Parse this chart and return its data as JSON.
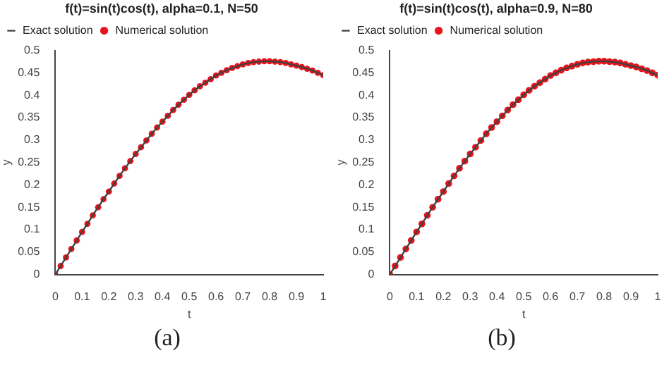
{
  "chart_data": [
    {
      "type": "line",
      "title": "f(t)=sin(t)cos(t), alpha=0.1, N=50",
      "xlabel": "t",
      "ylabel": "y",
      "annotations": [
        "(a)"
      ],
      "legend": "top left",
      "grid": false,
      "xlim": [
        0,
        1
      ],
      "xticks": [
        0,
        0.1,
        0.2,
        0.3,
        0.4,
        0.5,
        0.6,
        0.7,
        0.8,
        0.9,
        1
      ],
      "ylim": [
        0,
        0.5
      ],
      "yticks": [
        0,
        0.05,
        0.1,
        0.15,
        0.2,
        0.25,
        0.3,
        0.35,
        0.4,
        0.45,
        0.5
      ],
      "x": [
        0,
        0.02,
        0.04,
        0.06,
        0.08,
        0.1,
        0.12,
        0.14,
        0.16,
        0.18,
        0.2,
        0.22,
        0.24,
        0.26,
        0.28,
        0.3,
        0.32,
        0.34,
        0.36,
        0.38,
        0.4,
        0.42,
        0.44,
        0.46,
        0.48,
        0.5,
        0.52,
        0.54,
        0.56,
        0.58,
        0.6,
        0.62,
        0.64,
        0.66,
        0.68,
        0.7,
        0.72,
        0.74,
        0.76,
        0.78,
        0.8,
        0.82,
        0.84,
        0.86,
        0.88,
        0.9,
        0.92,
        0.94,
        0.96,
        0.98,
        1
      ],
      "series": [
        {
          "name": "Exact solution",
          "type": "line",
          "color": "#404040",
          "marker": "none",
          "line_style": "solid",
          "values": [
            0,
            0.019,
            0.038,
            0.057,
            0.076,
            0.095,
            0.113,
            0.132,
            0.15,
            0.168,
            0.185,
            0.203,
            0.22,
            0.237,
            0.253,
            0.269,
            0.284,
            0.299,
            0.314,
            0.328,
            0.341,
            0.354,
            0.367,
            0.379,
            0.39,
            0.401,
            0.411,
            0.42,
            0.428,
            0.436,
            0.444,
            0.45,
            0.456,
            0.461,
            0.465,
            0.469,
            0.472,
            0.474,
            0.475,
            0.476,
            0.476,
            0.475,
            0.474,
            0.472,
            0.469,
            0.466,
            0.463,
            0.459,
            0.455,
            0.45,
            0.445
          ]
        },
        {
          "name": "Numerical solution",
          "type": "scatter",
          "color": "#e8141c",
          "marker": "circle",
          "values": [
            0,
            0.019,
            0.038,
            0.057,
            0.076,
            0.095,
            0.113,
            0.132,
            0.15,
            0.168,
            0.185,
            0.203,
            0.22,
            0.237,
            0.253,
            0.269,
            0.284,
            0.299,
            0.314,
            0.328,
            0.341,
            0.354,
            0.367,
            0.379,
            0.39,
            0.401,
            0.411,
            0.42,
            0.428,
            0.436,
            0.444,
            0.45,
            0.456,
            0.461,
            0.465,
            0.469,
            0.472,
            0.474,
            0.475,
            0.476,
            0.476,
            0.475,
            0.474,
            0.472,
            0.469,
            0.466,
            0.463,
            0.459,
            0.455,
            0.45,
            0.445
          ]
        }
      ]
    },
    {
      "type": "line",
      "title": "f(t)=sin(t)cos(t), alpha=0.9, N=80",
      "xlabel": "t",
      "ylabel": "y",
      "annotations": [
        "(b)"
      ],
      "legend": "top left",
      "grid": false,
      "xlim": [
        0,
        1
      ],
      "xticks": [
        0,
        0.1,
        0.2,
        0.3,
        0.4,
        0.5,
        0.6,
        0.7,
        0.8,
        0.9,
        1
      ],
      "ylim": [
        0,
        0.5
      ],
      "yticks": [
        0,
        0.05,
        0.1,
        0.15,
        0.2,
        0.25,
        0.3,
        0.35,
        0.4,
        0.45,
        0.5
      ],
      "x": [
        0,
        0.02,
        0.04,
        0.06,
        0.08,
        0.1,
        0.12,
        0.14,
        0.16,
        0.18,
        0.2,
        0.22,
        0.24,
        0.26,
        0.28,
        0.3,
        0.32,
        0.34,
        0.36,
        0.38,
        0.4,
        0.42,
        0.44,
        0.46,
        0.48,
        0.5,
        0.52,
        0.54,
        0.56,
        0.58,
        0.6,
        0.62,
        0.64,
        0.66,
        0.68,
        0.7,
        0.72,
        0.74,
        0.76,
        0.78,
        0.8,
        0.82,
        0.84,
        0.86,
        0.88,
        0.9,
        0.92,
        0.94,
        0.96,
        0.98,
        1
      ],
      "series": [
        {
          "name": "Exact solution",
          "type": "line",
          "color": "#404040",
          "marker": "none",
          "line_style": "solid",
          "values": [
            0,
            0.019,
            0.038,
            0.057,
            0.076,
            0.095,
            0.113,
            0.132,
            0.15,
            0.168,
            0.185,
            0.203,
            0.22,
            0.237,
            0.253,
            0.269,
            0.284,
            0.299,
            0.314,
            0.328,
            0.341,
            0.354,
            0.367,
            0.379,
            0.39,
            0.401,
            0.411,
            0.42,
            0.428,
            0.436,
            0.444,
            0.45,
            0.456,
            0.461,
            0.465,
            0.469,
            0.472,
            0.474,
            0.475,
            0.476,
            0.476,
            0.475,
            0.474,
            0.472,
            0.469,
            0.466,
            0.463,
            0.459,
            0.455,
            0.45,
            0.445
          ]
        },
        {
          "name": "Numerical solution",
          "type": "scatter",
          "color": "#e8141c",
          "marker": "circle",
          "values": [
            0,
            0.019,
            0.038,
            0.057,
            0.076,
            0.095,
            0.113,
            0.132,
            0.15,
            0.168,
            0.185,
            0.203,
            0.22,
            0.237,
            0.253,
            0.269,
            0.284,
            0.299,
            0.314,
            0.328,
            0.341,
            0.354,
            0.367,
            0.379,
            0.39,
            0.401,
            0.411,
            0.42,
            0.428,
            0.436,
            0.444,
            0.45,
            0.456,
            0.461,
            0.465,
            0.469,
            0.472,
            0.474,
            0.475,
            0.476,
            0.476,
            0.475,
            0.474,
            0.472,
            0.469,
            0.466,
            0.463,
            0.459,
            0.455,
            0.45,
            0.445
          ]
        }
      ]
    }
  ]
}
